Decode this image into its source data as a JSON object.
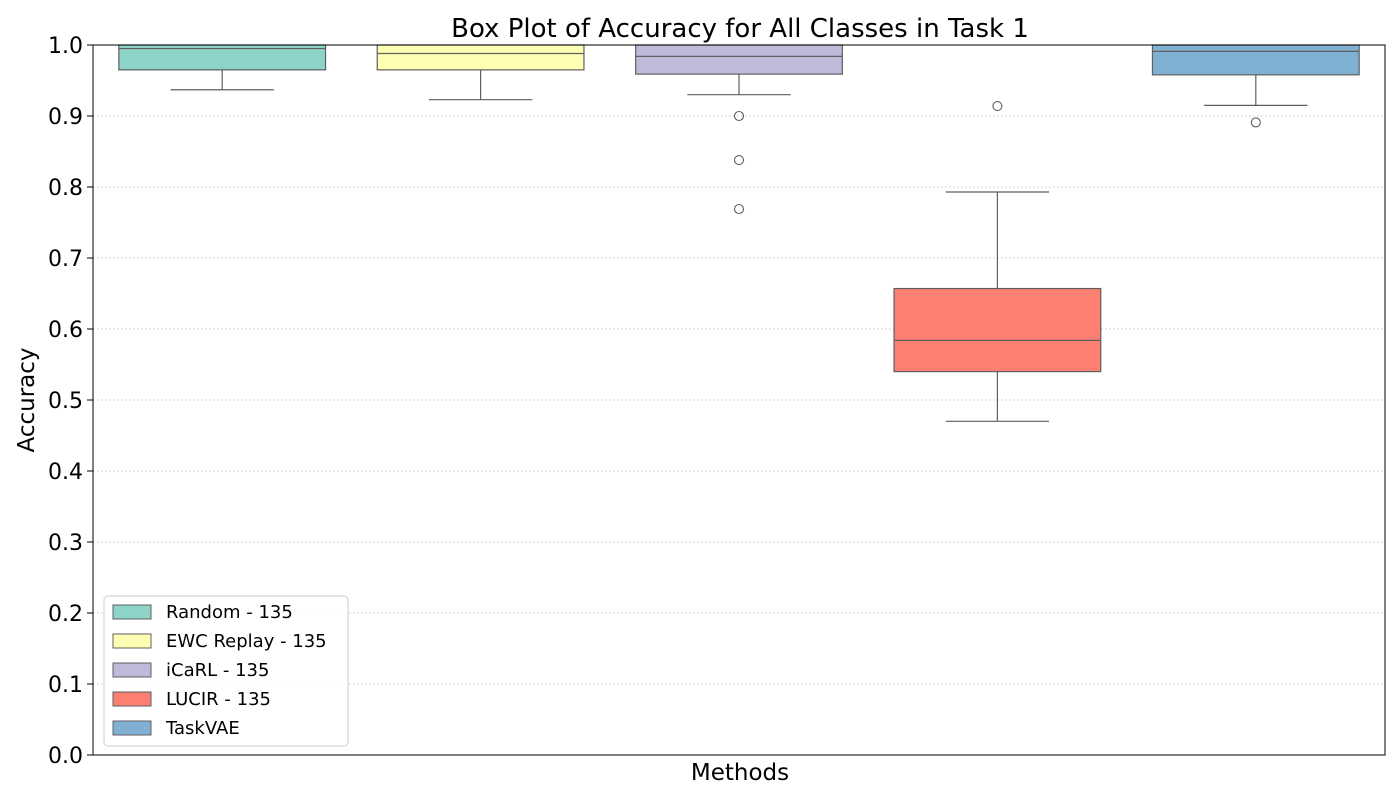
{
  "chart_data": {
    "type": "box",
    "title": "Box Plot of Accuracy for All Classes in Task 1",
    "xlabel": "Methods",
    "ylabel": "Accuracy",
    "ylim": [
      0.0,
      1.0
    ],
    "yticks": [
      0.0,
      0.1,
      0.2,
      0.3,
      0.4,
      0.5,
      0.6,
      0.7,
      0.8,
      0.9,
      1.0
    ],
    "ytick_labels": [
      "0.0",
      "0.1",
      "0.2",
      "0.3",
      "0.4",
      "0.5",
      "0.6",
      "0.7",
      "0.8",
      "0.9",
      "1.0"
    ],
    "grid": "horizontal dotted",
    "legend_position": "bottom-left",
    "series": [
      {
        "name": "Random - 135",
        "color": "#8dd3c7",
        "whisker_low": 0.937,
        "q1": 0.965,
        "median": 0.995,
        "q3": 1.0,
        "whisker_high": 1.0,
        "outliers": []
      },
      {
        "name": "EWC Replay - 135",
        "color": "#ffffb3",
        "whisker_low": 0.923,
        "q1": 0.965,
        "median": 0.988,
        "q3": 1.0,
        "whisker_high": 1.0,
        "outliers": []
      },
      {
        "name": "iCaRL - 135",
        "color": "#bebada",
        "whisker_low": 0.93,
        "q1": 0.959,
        "median": 0.984,
        "q3": 1.0,
        "whisker_high": 1.0,
        "outliers": [
          0.9,
          0.838,
          0.769
        ]
      },
      {
        "name": "LUCIR - 135",
        "color": "#fb8072",
        "whisker_low": 0.47,
        "q1": 0.54,
        "median": 0.584,
        "q3": 0.657,
        "whisker_high": 0.793,
        "outliers": [
          0.914
        ]
      },
      {
        "name": "TaskVAE",
        "color": "#80b1d3",
        "whisker_low": 0.915,
        "q1": 0.958,
        "median": 0.991,
        "q3": 1.0,
        "whisker_high": 1.0,
        "outliers": [
          0.891
        ]
      }
    ]
  }
}
